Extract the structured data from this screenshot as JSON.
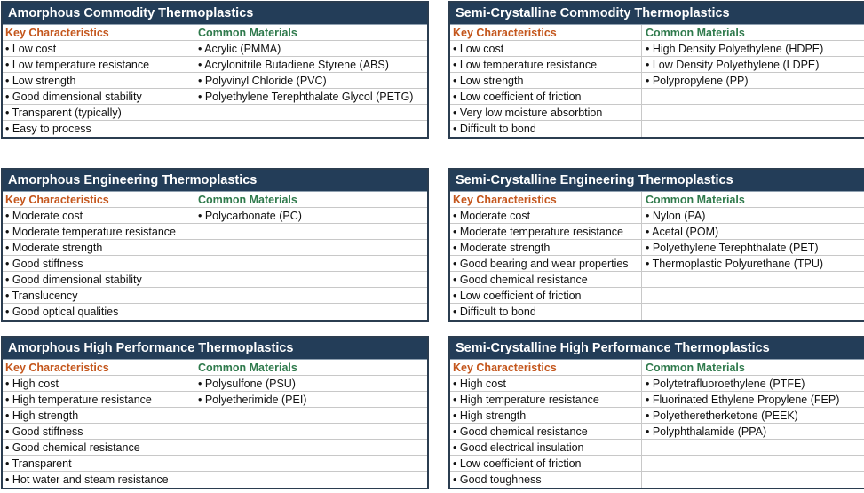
{
  "panels": [
    {
      "title": "Amorphous Commodity Thermoplastics",
      "headers": [
        "Key Characteristics",
        "Common Materials"
      ],
      "characteristics": [
        "• Low cost",
        "• Low temperature resistance",
        "• Low strength",
        "• Good dimensional stability",
        "• Transparent (typically)",
        "• Easy to process"
      ],
      "materials": [
        "• Acrylic (PMMA)",
        "• Acrylonitrile Butadiene Styrene (ABS)",
        "• Polyvinyl Chloride (PVC)",
        "• Polyethylene Terephthalate Glycol (PETG)"
      ]
    },
    {
      "title": "Semi-Crystalline Commodity Thermoplastics",
      "headers": [
        "Key Characteristics",
        "Common Materials"
      ],
      "characteristics": [
        "• Low cost",
        "• Low temperature resistance",
        "• Low strength",
        "• Low coefficient of friction",
        "• Very low moisture absorbtion",
        "• Difficult to bond"
      ],
      "materials": [
        "• High Density Polyethylene (HDPE)",
        "• Low Density Polyethylene (LDPE)",
        "• Polypropylene (PP)"
      ]
    },
    {
      "title": "Amorphous Engineering Thermoplastics",
      "headers": [
        "Key Characteristics",
        "Common Materials"
      ],
      "characteristics": [
        "• Moderate cost",
        "• Moderate temperature resistance",
        "• Moderate strength",
        "• Good stiffness",
        "• Good dimensional stability",
        "• Translucency",
        "• Good optical qualities"
      ],
      "materials": [
        "• Polycarbonate (PC)"
      ]
    },
    {
      "title": "Semi-Crystalline Engineering Thermoplastics",
      "headers": [
        "Key Characteristics",
        "Common Materials"
      ],
      "characteristics": [
        "• Moderate cost",
        "• Moderate temperature resistance",
        "• Moderate strength",
        "• Good bearing and wear properties",
        "• Good chemical resistance",
        "• Low coefficient of friction",
        "• Difficult to bond"
      ],
      "materials": [
        "• Nylon (PA)",
        "• Acetal (POM)",
        "• Polyethylene Terephthalate (PET)",
        "• Thermoplastic Polyurethane (TPU)"
      ]
    },
    {
      "title": "Amorphous High Performance Thermoplastics",
      "headers": [
        "Key Characteristics",
        "Common Materials"
      ],
      "characteristics": [
        "• High cost",
        "• High temperature resistance",
        "• High strength",
        "• Good stiffness",
        "• Good chemical resistance",
        "• Transparent",
        "• Hot water and steam resistance"
      ],
      "materials": [
        "• Polysulfone (PSU)",
        "• Polyetherimide (PEI)"
      ]
    },
    {
      "title": "Semi-Crystalline High Performance Thermoplastics",
      "headers": [
        "Key Characteristics",
        "Common Materials"
      ],
      "characteristics": [
        "• High cost",
        "• High temperature resistance",
        "• High strength",
        "• Good chemical resistance",
        "• Good electrical insulation",
        "• Low coefficient of friction",
        "• Good toughness"
      ],
      "materials": [
        "• Polytetrafluoroethylene (PTFE)",
        "• Fluorinated Ethylene Propylene (FEP)",
        "• Polyetheretherketone (PEEK)",
        "• Polyphthalamide (PPA)"
      ]
    }
  ]
}
